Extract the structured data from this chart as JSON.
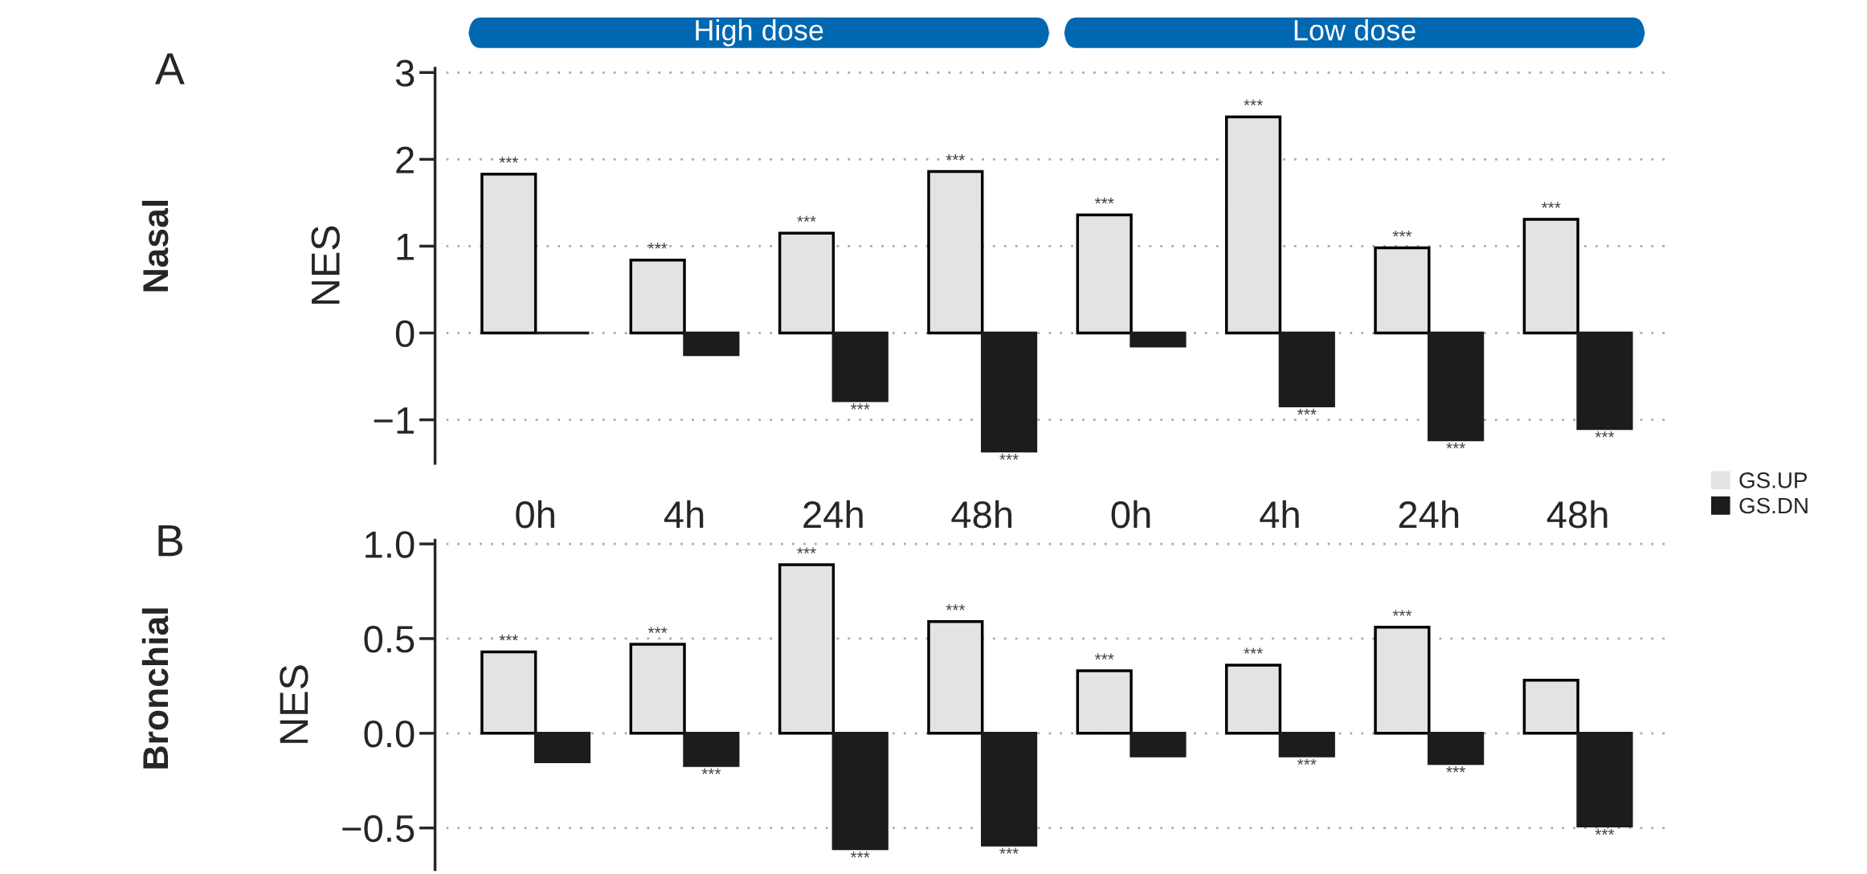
{
  "chart_data": [
    {
      "type": "bar",
      "ylabel": "NES",
      "annotations": [
        "A",
        "Nasal",
        "High dose",
        "Low dose"
      ],
      "categories": [
        null,
        null,
        null,
        null,
        null,
        null,
        null,
        null
      ],
      "series": [
        {
          "name": "GS.UP",
          "color": "#e3e3e3",
          "values": [
            1.83,
            0.84,
            1.15,
            1.86,
            1.36,
            2.49,
            0.98,
            1.31
          ],
          "value_labels": [
            "***",
            "***",
            "***",
            "***",
            "***",
            "***",
            "***",
            "***"
          ]
        },
        {
          "name": "GS.DN",
          "color": "#1c1c1c",
          "values": [
            0,
            -0.25,
            -0.78,
            -1.36,
            -0.15,
            -0.84,
            -1.23,
            -1.1
          ],
          "value_labels": [
            null,
            null,
            "***",
            "***",
            null,
            "***",
            "***",
            "***"
          ]
        }
      ],
      "ylim": [
        -1.5,
        3.05
      ],
      "yticks": [
        -1,
        0,
        1,
        2,
        3
      ],
      "grid": "y",
      "legend": "right",
      "tick_labels": "y"
    },
    {
      "type": "bar",
      "ylabel": "NES",
      "annotations": [
        "B",
        "Bronchial"
      ],
      "categories": [
        "0h",
        "4h",
        "24h",
        "48h",
        "0h",
        "4h",
        "24h",
        "48h"
      ],
      "series": [
        {
          "color": "#e3e3e3",
          "values": [
            0.43,
            0.47,
            0.89,
            0.59,
            0.33,
            0.36,
            0.56,
            0.28
          ],
          "value_labels": [
            "***",
            "***",
            "***",
            "***",
            "***",
            "***",
            "***",
            null
          ]
        },
        {
          "color": "#1c1c1c",
          "values": [
            -0.15,
            -0.17,
            -0.61,
            -0.59,
            -0.12,
            -0.12,
            -0.16,
            -0.49
          ],
          "value_labels": [
            null,
            "***",
            "***",
            "***",
            null,
            "***",
            "***",
            "***"
          ]
        }
      ],
      "ylim": [
        -0.72,
        1.02
      ],
      "yticks": [
        -0.5,
        {
          "value": 0,
          "label": "0.0"
        },
        0.5,
        {
          "value": 1,
          "label": "1.0"
        }
      ],
      "grid": "y"
    }
  ]
}
